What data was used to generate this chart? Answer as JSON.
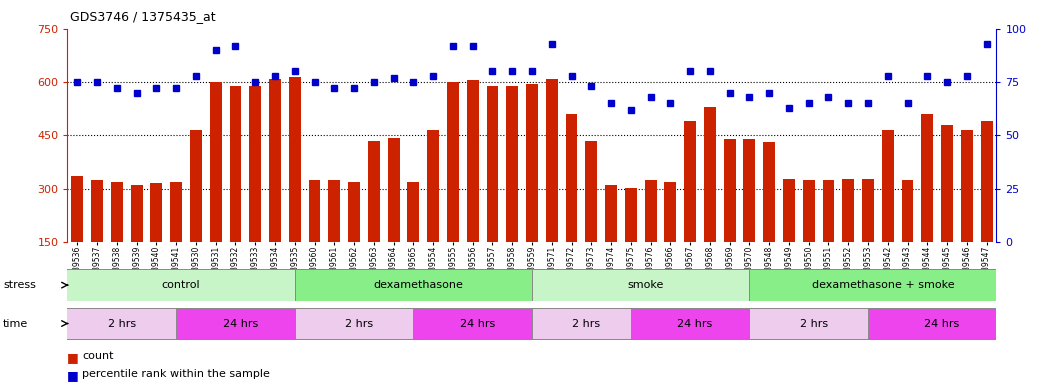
{
  "title": "GDS3746 / 1375435_at",
  "samples": [
    "GSM389536",
    "GSM389537",
    "GSM389538",
    "GSM389539",
    "GSM389540",
    "GSM389541",
    "GSM389530",
    "GSM389531",
    "GSM389532",
    "GSM389533",
    "GSM389534",
    "GSM389535",
    "GSM389560",
    "GSM389561",
    "GSM389562",
    "GSM389563",
    "GSM389564",
    "GSM389565",
    "GSM389554",
    "GSM389555",
    "GSM389556",
    "GSM389557",
    "GSM389558",
    "GSM389559",
    "GSM389571",
    "GSM389572",
    "GSM389573",
    "GSM389574",
    "GSM389575",
    "GSM389576",
    "GSM389566",
    "GSM389567",
    "GSM389568",
    "GSM389569",
    "GSM389570",
    "GSM389548",
    "GSM389549",
    "GSM389550",
    "GSM389551",
    "GSM389552",
    "GSM389553",
    "GSM389542",
    "GSM389543",
    "GSM389544",
    "GSM389545",
    "GSM389546",
    "GSM389547"
  ],
  "counts": [
    335,
    325,
    320,
    310,
    315,
    318,
    465,
    600,
    590,
    590,
    610,
    615,
    325,
    325,
    318,
    435,
    442,
    320,
    465,
    600,
    605,
    590,
    590,
    595,
    610,
    510,
    435,
    310,
    303,
    325,
    318,
    490,
    530,
    440,
    440,
    430,
    328,
    325,
    323,
    328,
    328,
    465,
    325,
    510,
    480,
    465,
    490
  ],
  "percentile_ranks": [
    75,
    75,
    72,
    70,
    72,
    72,
    78,
    90,
    92,
    75,
    78,
    80,
    75,
    72,
    72,
    75,
    77,
    75,
    78,
    92,
    92,
    80,
    80,
    80,
    93,
    78,
    73,
    65,
    62,
    68,
    65,
    80,
    80,
    70,
    68,
    70,
    63,
    65,
    68,
    65,
    65,
    78,
    65,
    78,
    75,
    78,
    93
  ],
  "bar_color": "#cc2200",
  "dot_color": "#0000cc",
  "ylim_left": [
    150,
    750
  ],
  "ylim_right": [
    0,
    100
  ],
  "yticks_left": [
    150,
    300,
    450,
    600,
    750
  ],
  "yticks_right": [
    0,
    25,
    50,
    75,
    100
  ],
  "hlines": [
    300,
    450,
    600
  ],
  "stress_groups": [
    {
      "label": "control",
      "start": 0,
      "end": 11,
      "color": "#c8f5c8"
    },
    {
      "label": "dexamethasone",
      "start": 12,
      "end": 23,
      "color": "#88ee88"
    },
    {
      "label": "smoke",
      "start": 24,
      "end": 34,
      "color": "#c8f5c8"
    },
    {
      "label": "dexamethasone + smoke",
      "start": 35,
      "end": 47,
      "color": "#88ee88"
    }
  ],
  "time_groups": [
    {
      "label": "2 hrs",
      "start": 0,
      "end": 5,
      "color": "#eeccee"
    },
    {
      "label": "24 hrs",
      "start": 6,
      "end": 11,
      "color": "#ee44ee"
    },
    {
      "label": "2 hrs",
      "start": 12,
      "end": 17,
      "color": "#eeccee"
    },
    {
      "label": "24 hrs",
      "start": 18,
      "end": 23,
      "color": "#ee44ee"
    },
    {
      "label": "2 hrs",
      "start": 24,
      "end": 28,
      "color": "#eeccee"
    },
    {
      "label": "24 hrs",
      "start": 29,
      "end": 34,
      "color": "#ee44ee"
    },
    {
      "label": "2 hrs",
      "start": 35,
      "end": 40,
      "color": "#eeccee"
    },
    {
      "label": "24 hrs",
      "start": 41,
      "end": 47,
      "color": "#ee44ee"
    }
  ],
  "background_color": "#ffffff",
  "stress_label": "stress",
  "time_label": "time",
  "legend_count_label": "count",
  "legend_pct_label": "percentile rank within the sample"
}
